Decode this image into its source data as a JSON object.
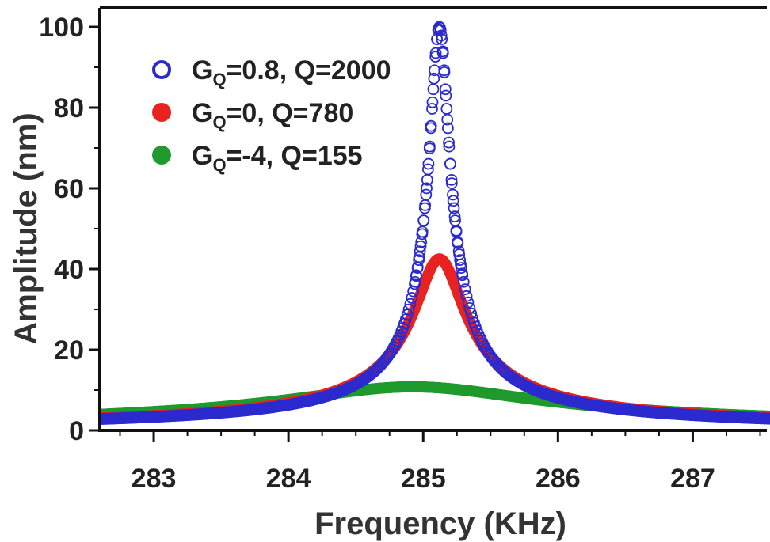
{
  "chart_data": {
    "type": "scatter",
    "xlabel": "Frequency (KHz)",
    "ylabel": "Amplitude (nm)",
    "xlim": [
      282.6,
      287.55
    ],
    "ylim": [
      0,
      100
    ],
    "x_ticks": [
      283,
      284,
      285,
      286,
      287
    ],
    "y_ticks": [
      0,
      20,
      40,
      60,
      80,
      100
    ],
    "grid": false,
    "legend_position": "top-left",
    "series": [
      {
        "name": "GQ=0.8, Q=2000",
        "legend": {
          "prefix": "G",
          "sub": "Q",
          "rest": "=0.8, Q=2000"
        },
        "marker": "open-circle",
        "color": "#2a2acf",
        "peak": {
          "f0": 285.12,
          "amplitude": 100,
          "Q": 2000
        }
      },
      {
        "name": "GQ=0, Q=780",
        "legend": {
          "prefix": "G",
          "sub": "Q",
          "rest": "=0, Q=780"
        },
        "marker": "filled-circle",
        "color": "#e8221f",
        "peak": {
          "f0": 285.12,
          "amplitude": 42.5,
          "Q": 780
        }
      },
      {
        "name": "GQ=-4, Q=155",
        "legend": {
          "prefix": "G",
          "sub": "Q",
          "rest": "=-4, Q=155"
        },
        "marker": "filled-circle",
        "color": "#1f9a2c",
        "peak": {
          "f0": 284.92,
          "amplitude": 10.8,
          "Q": 155
        }
      }
    ]
  }
}
